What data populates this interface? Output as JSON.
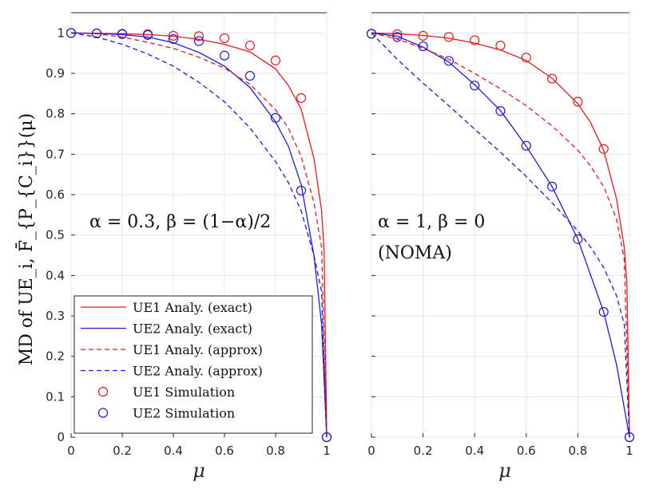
{
  "chart_data": [
    {
      "type": "line",
      "panel": "left",
      "xlabel": "μ",
      "ylabel": "MD of UE_i, F̄_{P_{C_i}}(μ)",
      "xlim": [
        0,
        1
      ],
      "ylim": [
        0,
        1.05
      ],
      "xticks": [
        0,
        0.2,
        0.4,
        0.6,
        0.8,
        1
      ],
      "yticks": [
        0,
        0.1,
        0.2,
        0.3,
        0.4,
        0.5,
        0.6,
        0.7,
        0.8,
        0.9,
        1
      ],
      "grid": true,
      "annotation": {
        "text": "α = 0.3, β = (1−α)/2",
        "lines": [
          "α = 0.3, β = (1−α)/2"
        ]
      },
      "series": [
        {
          "name": "UE1 Analy. (exact)",
          "color": "#e8191b",
          "style": "solid",
          "x": [
            0,
            0.1,
            0.2,
            0.3,
            0.4,
            0.5,
            0.6,
            0.7,
            0.8,
            0.85,
            0.9,
            0.95,
            0.98,
            0.99,
            1
          ],
          "y": [
            1,
            0.999,
            0.998,
            0.996,
            0.992,
            0.984,
            0.972,
            0.953,
            0.911,
            0.87,
            0.812,
            0.69,
            0.56,
            0.46,
            0
          ]
        },
        {
          "name": "UE2 Analy. (exact)",
          "color": "#1a1ae0",
          "style": "solid",
          "x": [
            0,
            0.1,
            0.2,
            0.3,
            0.4,
            0.5,
            0.6,
            0.7,
            0.8,
            0.85,
            0.9,
            0.95,
            0.98,
            1
          ],
          "y": [
            1,
            0.999,
            0.996,
            0.99,
            0.976,
            0.952,
            0.918,
            0.865,
            0.78,
            0.72,
            0.625,
            0.45,
            0.28,
            0
          ]
        },
        {
          "name": "UE1 Analy. (approx)",
          "color": "#e8191b",
          "style": "dashed",
          "x": [
            0,
            0.1,
            0.2,
            0.3,
            0.4,
            0.5,
            0.6,
            0.7,
            0.8,
            0.85,
            0.9,
            0.95,
            0.98,
            1
          ],
          "y": [
            1,
            0.998,
            0.99,
            0.977,
            0.962,
            0.94,
            0.913,
            0.873,
            0.81,
            0.765,
            0.695,
            0.58,
            0.47,
            0
          ]
        },
        {
          "name": "UE2 Analy. (approx)",
          "color": "#1a1ae0",
          "style": "dashed",
          "x": [
            0,
            0.1,
            0.2,
            0.3,
            0.4,
            0.5,
            0.6,
            0.7,
            0.8,
            0.85,
            0.9,
            0.95,
            0.98,
            1
          ],
          "y": [
            1,
            0.99,
            0.972,
            0.948,
            0.918,
            0.878,
            0.83,
            0.765,
            0.682,
            0.63,
            0.56,
            0.45,
            0.36,
            0
          ]
        },
        {
          "name": "UE1 Simulation",
          "color": "#e8191b",
          "style": "marker",
          "x": [
            0,
            0.1,
            0.2,
            0.3,
            0.4,
            0.5,
            0.6,
            0.7,
            0.8,
            0.9,
            1
          ],
          "y": [
            1,
            0.999,
            0.998,
            0.997,
            0.993,
            0.992,
            0.987,
            0.969,
            0.932,
            0.839,
            0
          ]
        },
        {
          "name": "UE2 Simulation",
          "color": "#1a1ae0",
          "style": "marker",
          "x": [
            0,
            0.1,
            0.2,
            0.3,
            0.4,
            0.5,
            0.6,
            0.7,
            0.8,
            0.9,
            1
          ],
          "y": [
            1,
            0.999,
            0.997,
            0.995,
            0.985,
            0.98,
            0.944,
            0.894,
            0.79,
            0.61,
            0
          ]
        }
      ],
      "legend": {
        "position": "bottom-left",
        "entries": [
          "UE1 Analy. (exact)",
          "UE2 Analy. (exact)",
          "UE1 Analy. (approx)",
          "UE2 Analy. (approx)",
          "UE1 Simulation",
          "UE2 Simulation"
        ]
      }
    },
    {
      "type": "line",
      "panel": "right",
      "xlabel": "μ",
      "xlim": [
        0,
        1
      ],
      "ylim": [
        0,
        1.05
      ],
      "xticks": [
        0,
        0.2,
        0.4,
        0.6,
        0.8,
        1
      ],
      "grid": true,
      "annotation": {
        "text": "α = 1, β = 0 (NOMA)",
        "lines": [
          "α = 1, β = 0",
          "(NOMA)"
        ]
      },
      "series": [
        {
          "name": "UE1 Analy. (exact)",
          "color": "#e8191b",
          "style": "solid",
          "x": [
            0,
            0.1,
            0.2,
            0.3,
            0.4,
            0.5,
            0.6,
            0.7,
            0.8,
            0.85,
            0.9,
            0.95,
            0.98,
            0.99,
            1
          ],
          "y": [
            1,
            0.998,
            0.994,
            0.987,
            0.975,
            0.958,
            0.932,
            0.888,
            0.825,
            0.778,
            0.71,
            0.59,
            0.47,
            0.38,
            0
          ]
        },
        {
          "name": "UE2 Analy. (exact)",
          "color": "#1a1ae0",
          "style": "solid",
          "x": [
            0,
            0.1,
            0.2,
            0.3,
            0.4,
            0.5,
            0.6,
            0.7,
            0.8,
            0.9,
            0.95,
            1
          ],
          "y": [
            1,
            0.992,
            0.965,
            0.928,
            0.872,
            0.808,
            0.72,
            0.62,
            0.49,
            0.31,
            0.18,
            0
          ]
        },
        {
          "name": "UE1 Analy. (approx)",
          "color": "#e8191b",
          "style": "dashed",
          "x": [
            0,
            0.1,
            0.2,
            0.3,
            0.4,
            0.5,
            0.6,
            0.7,
            0.8,
            0.85,
            0.9,
            0.95,
            0.98,
            1
          ],
          "y": [
            1,
            0.985,
            0.962,
            0.935,
            0.9,
            0.862,
            0.82,
            0.77,
            0.71,
            0.67,
            0.62,
            0.54,
            0.44,
            0
          ]
        },
        {
          "name": "UE2 Analy. (approx)",
          "color": "#1a1ae0",
          "style": "dashed",
          "x": [
            0,
            0.1,
            0.2,
            0.3,
            0.4,
            0.5,
            0.6,
            0.7,
            0.8,
            0.85,
            0.9,
            0.95,
            0.98,
            1
          ],
          "y": [
            1,
            0.935,
            0.876,
            0.82,
            0.762,
            0.705,
            0.645,
            0.58,
            0.51,
            0.47,
            0.42,
            0.35,
            0.28,
            0
          ]
        },
        {
          "name": "UE1 Simulation",
          "color": "#e8191b",
          "style": "marker",
          "x": [
            0,
            0.1,
            0.2,
            0.3,
            0.4,
            0.5,
            0.6,
            0.7,
            0.8,
            0.9,
            1
          ],
          "y": [
            0.998,
            0.997,
            0.993,
            0.99,
            0.982,
            0.969,
            0.939,
            0.887,
            0.83,
            0.713,
            0
          ]
        },
        {
          "name": "UE2 Simulation",
          "color": "#1a1ae0",
          "style": "marker",
          "x": [
            0,
            0.1,
            0.2,
            0.3,
            0.4,
            0.5,
            0.6,
            0.7,
            0.8,
            0.9,
            1
          ],
          "y": [
            0.998,
            0.99,
            0.967,
            0.931,
            0.87,
            0.807,
            0.721,
            0.62,
            0.49,
            0.31,
            0
          ]
        }
      ]
    }
  ]
}
